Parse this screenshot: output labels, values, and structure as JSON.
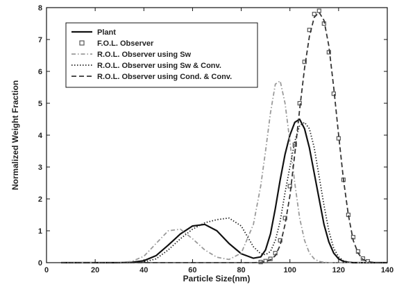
{
  "chart_data": {
    "type": "line",
    "xlabel": "Particle Size(nm)",
    "ylabel": "Normalized Weight Fraction",
    "xlim": [
      0,
      140
    ],
    "ylim": [
      0,
      8
    ],
    "xticks": [
      0,
      20,
      40,
      60,
      80,
      100,
      120,
      140
    ],
    "yticks": [
      0,
      1,
      2,
      3,
      4,
      5,
      6,
      7,
      8
    ],
    "grid": false,
    "legend_position": "top-left",
    "x": [
      6,
      10,
      15,
      20,
      25,
      30,
      35,
      40,
      45,
      50,
      55,
      60,
      65,
      70,
      75,
      80,
      85,
      88,
      90,
      92,
      94,
      96,
      98,
      100,
      102,
      104,
      106,
      108,
      110,
      112,
      114,
      116,
      118,
      120,
      122,
      124,
      126,
      128,
      130,
      132,
      135,
      140
    ],
    "series": [
      {
        "name": "Plant",
        "style": "solid",
        "color": "#111111",
        "values": [
          0,
          0,
          0,
          0,
          0,
          0,
          0.01,
          0.06,
          0.22,
          0.55,
          0.9,
          1.15,
          1.2,
          1.0,
          0.6,
          0.28,
          0.14,
          0.18,
          0.4,
          0.9,
          1.7,
          2.6,
          3.4,
          4.0,
          4.4,
          4.5,
          4.2,
          3.6,
          2.8,
          2.0,
          1.2,
          0.65,
          0.3,
          0.12,
          0.04,
          0.01,
          0,
          0,
          0,
          0,
          0,
          0
        ]
      },
      {
        "name": "F.O.L. Observer",
        "style": "squares",
        "color": "#555555",
        "values": [
          0,
          0,
          0,
          0,
          0,
          0,
          0,
          0,
          0,
          0,
          0,
          0,
          0,
          0,
          0,
          0,
          0.01,
          0.02,
          0.05,
          0.12,
          0.3,
          0.7,
          1.4,
          2.4,
          3.7,
          5.0,
          6.3,
          7.3,
          7.8,
          7.9,
          7.5,
          6.6,
          5.3,
          3.9,
          2.6,
          1.5,
          0.8,
          0.35,
          0.13,
          0.04,
          0.01,
          0
        ]
      },
      {
        "name": "R.O.L. Observer using Sw",
        "style": "dashdot",
        "color": "#9a9a9a",
        "values": [
          0,
          0,
          0,
          0,
          0,
          0,
          0.04,
          0.2,
          0.6,
          1.0,
          1.05,
          0.75,
          0.4,
          0.17,
          0.1,
          0.3,
          1.2,
          2.4,
          3.5,
          4.7,
          5.6,
          5.7,
          5.0,
          3.8,
          2.5,
          1.4,
          0.7,
          0.3,
          0.12,
          0.04,
          0.01,
          0,
          0,
          0,
          0,
          0,
          0,
          0,
          0,
          0,
          0,
          0
        ]
      },
      {
        "name": "R.O.L. Observer using Sw & Conv.",
        "style": "dotted",
        "color": "#222222",
        "values": [
          0,
          0,
          0,
          0,
          0,
          0,
          0,
          0.02,
          0.12,
          0.4,
          0.75,
          1.05,
          1.25,
          1.35,
          1.4,
          1.15,
          0.5,
          0.28,
          0.25,
          0.35,
          0.7,
          1.3,
          2.2,
          3.0,
          3.8,
          4.3,
          4.4,
          4.2,
          3.6,
          2.7,
          1.8,
          1.0,
          0.45,
          0.18,
          0.06,
          0.02,
          0,
          0,
          0,
          0,
          0,
          0
        ]
      },
      {
        "name": "R.O.L. Observer using Cond. & Conv.",
        "style": "dashed",
        "color": "#333333",
        "values": [
          0,
          0,
          0,
          0,
          0,
          0,
          0,
          0,
          0,
          0,
          0,
          0,
          0,
          0,
          0,
          0,
          0,
          0.01,
          0.03,
          0.09,
          0.22,
          0.55,
          1.2,
          2.1,
          3.4,
          4.8,
          6.1,
          7.1,
          7.7,
          7.85,
          7.6,
          6.8,
          5.5,
          4.0,
          2.6,
          1.5,
          0.7,
          0.3,
          0.1,
          0.03,
          0,
          0
        ]
      }
    ]
  }
}
